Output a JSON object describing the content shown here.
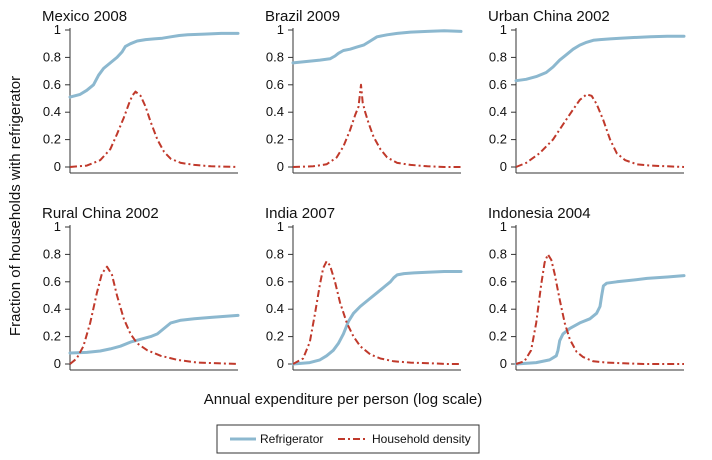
{
  "figure": {
    "ylabel": "Fraction of households with refrigerator",
    "xlabel": "Annual expenditure per person (log scale)",
    "legend": {
      "placement": "bottom-center",
      "entries": [
        {
          "name": "Refrigerator",
          "color": "#8cb8cf",
          "style": "solid"
        },
        {
          "name": "Household density",
          "color": "#c0392b",
          "style": "dash-dot"
        }
      ]
    }
  },
  "chart_data": [
    {
      "type": "line",
      "title": "Mexico 2008",
      "ylim": [
        0,
        1
      ],
      "yticks": [
        "0",
        "0.2",
        "0.4",
        "0.6",
        "0.8",
        "1"
      ],
      "xlim": [
        0,
        1
      ],
      "series": [
        {
          "name": "Refrigerator",
          "style": "solid",
          "x": [
            0,
            0.06,
            0.1,
            0.14,
            0.17,
            0.2,
            0.24,
            0.28,
            0.31,
            0.33,
            0.36,
            0.4,
            0.45,
            0.5,
            0.55,
            0.6,
            0.65,
            0.7,
            0.8,
            0.9,
            1.0
          ],
          "y": [
            0.51,
            0.53,
            0.56,
            0.6,
            0.67,
            0.72,
            0.76,
            0.8,
            0.84,
            0.88,
            0.9,
            0.92,
            0.93,
            0.935,
            0.94,
            0.95,
            0.96,
            0.965,
            0.97,
            0.975,
            0.975
          ]
        },
        {
          "name": "Household density",
          "style": "dash-dot",
          "x": [
            0,
            0.1,
            0.18,
            0.24,
            0.28,
            0.32,
            0.35,
            0.37,
            0.39,
            0.42,
            0.45,
            0.48,
            0.52,
            0.56,
            0.6,
            0.66,
            0.74,
            0.84,
            1.0
          ],
          "y": [
            0,
            0.01,
            0.05,
            0.13,
            0.24,
            0.36,
            0.46,
            0.52,
            0.55,
            0.52,
            0.44,
            0.33,
            0.2,
            0.11,
            0.06,
            0.03,
            0.015,
            0.005,
            0
          ]
        }
      ]
    },
    {
      "type": "line",
      "title": "Brazil 2009",
      "ylim": [
        0,
        1
      ],
      "yticks": [
        "0",
        "0.2",
        "0.4",
        "0.6",
        "0.8",
        "1"
      ],
      "xlim": [
        0,
        1
      ],
      "series": [
        {
          "name": "Refrigerator",
          "style": "solid",
          "x": [
            0,
            0.08,
            0.16,
            0.22,
            0.25,
            0.27,
            0.3,
            0.34,
            0.38,
            0.42,
            0.46,
            0.5,
            0.56,
            0.62,
            0.7,
            0.8,
            0.9,
            1.0
          ],
          "y": [
            0.76,
            0.77,
            0.78,
            0.79,
            0.81,
            0.83,
            0.85,
            0.86,
            0.875,
            0.89,
            0.92,
            0.95,
            0.965,
            0.975,
            0.985,
            0.99,
            0.995,
            0.99
          ]
        },
        {
          "name": "Household density",
          "style": "dash-dot",
          "x": [
            0,
            0.12,
            0.2,
            0.26,
            0.3,
            0.34,
            0.37,
            0.39,
            0.405,
            0.415,
            0.43,
            0.45,
            0.48,
            0.52,
            0.56,
            0.62,
            0.7,
            0.8,
            0.9,
            1.0
          ],
          "y": [
            0,
            0.005,
            0.02,
            0.07,
            0.15,
            0.27,
            0.38,
            0.44,
            0.6,
            0.47,
            0.4,
            0.32,
            0.22,
            0.13,
            0.07,
            0.03,
            0.015,
            0.005,
            0,
            0
          ]
        }
      ]
    },
    {
      "type": "line",
      "title": "Urban China 2002",
      "ylim": [
        0,
        1
      ],
      "yticks": [
        "0",
        "0.2",
        "0.4",
        "0.6",
        "0.8",
        "1"
      ],
      "xlim": [
        0,
        1
      ],
      "series": [
        {
          "name": "Refrigerator",
          "style": "solid",
          "x": [
            0,
            0.06,
            0.12,
            0.18,
            0.22,
            0.26,
            0.3,
            0.34,
            0.38,
            0.42,
            0.46,
            0.5,
            0.56,
            0.62,
            0.7,
            0.8,
            0.9,
            1.0
          ],
          "y": [
            0.63,
            0.64,
            0.66,
            0.69,
            0.73,
            0.78,
            0.82,
            0.86,
            0.89,
            0.91,
            0.925,
            0.93,
            0.935,
            0.94,
            0.945,
            0.95,
            0.955,
            0.955
          ]
        },
        {
          "name": "Household density",
          "style": "dash-dot",
          "x": [
            0,
            0.06,
            0.14,
            0.22,
            0.28,
            0.34,
            0.38,
            0.42,
            0.45,
            0.48,
            0.52,
            0.56,
            0.6,
            0.65,
            0.72,
            0.8,
            0.9,
            1.0
          ],
          "y": [
            0,
            0.03,
            0.1,
            0.2,
            0.31,
            0.42,
            0.49,
            0.53,
            0.52,
            0.46,
            0.34,
            0.2,
            0.1,
            0.05,
            0.02,
            0.01,
            0.005,
            0
          ]
        }
      ]
    },
    {
      "type": "line",
      "title": "Rural China 2002",
      "ylim": [
        0,
        1
      ],
      "yticks": [
        "0",
        "0.2",
        "0.4",
        "0.6",
        "0.8",
        "1"
      ],
      "xlim": [
        0,
        1
      ],
      "series": [
        {
          "name": "Refrigerator",
          "style": "solid",
          "x": [
            0,
            0.1,
            0.18,
            0.24,
            0.3,
            0.36,
            0.42,
            0.48,
            0.52,
            0.56,
            0.6,
            0.66,
            0.74,
            0.84,
            0.94,
            1.0
          ],
          "y": [
            0.08,
            0.085,
            0.095,
            0.11,
            0.13,
            0.16,
            0.18,
            0.2,
            0.22,
            0.26,
            0.3,
            0.32,
            0.33,
            0.34,
            0.35,
            0.355
          ]
        },
        {
          "name": "Household density",
          "style": "dash-dot",
          "x": [
            0,
            0.04,
            0.08,
            0.12,
            0.16,
            0.19,
            0.22,
            0.25,
            0.28,
            0.32,
            0.36,
            0.4,
            0.46,
            0.54,
            0.64,
            0.76,
            0.88,
            1.0
          ],
          "y": [
            0,
            0.04,
            0.13,
            0.3,
            0.52,
            0.66,
            0.71,
            0.65,
            0.5,
            0.33,
            0.22,
            0.15,
            0.1,
            0.06,
            0.03,
            0.01,
            0.005,
            0
          ]
        }
      ]
    },
    {
      "type": "line",
      "title": "India 2007",
      "ylim": [
        0,
        1
      ],
      "yticks": [
        "0",
        "0.2",
        "0.4",
        "0.6",
        "0.8",
        "1"
      ],
      "xlim": [
        0,
        1
      ],
      "series": [
        {
          "name": "Refrigerator",
          "style": "solid",
          "x": [
            0,
            0.1,
            0.16,
            0.2,
            0.24,
            0.27,
            0.3,
            0.33,
            0.36,
            0.4,
            0.45,
            0.5,
            0.55,
            0.58,
            0.6,
            0.62,
            0.66,
            0.72,
            0.8,
            0.9,
            1.0
          ],
          "y": [
            0,
            0.01,
            0.03,
            0.06,
            0.1,
            0.15,
            0.22,
            0.31,
            0.37,
            0.42,
            0.47,
            0.52,
            0.57,
            0.6,
            0.63,
            0.65,
            0.66,
            0.665,
            0.67,
            0.675,
            0.675
          ]
        },
        {
          "name": "Household density",
          "style": "dash-dot",
          "x": [
            0,
            0.06,
            0.1,
            0.13,
            0.16,
            0.18,
            0.2,
            0.22,
            0.25,
            0.28,
            0.32,
            0.36,
            0.4,
            0.46,
            0.52,
            0.6,
            0.7,
            0.82,
            0.92,
            1.0
          ],
          "y": [
            0,
            0.04,
            0.16,
            0.36,
            0.58,
            0.7,
            0.75,
            0.72,
            0.6,
            0.45,
            0.3,
            0.2,
            0.13,
            0.07,
            0.04,
            0.02,
            0.01,
            0.005,
            0,
            0
          ]
        }
      ]
    },
    {
      "type": "line",
      "title": "Indonesia 2004",
      "ylim": [
        0,
        1
      ],
      "yticks": [
        "0",
        "0.2",
        "0.4",
        "0.6",
        "0.8",
        "1"
      ],
      "xlim": [
        0,
        1
      ],
      "series": [
        {
          "name": "Refrigerator",
          "style": "solid",
          "x": [
            0,
            0.12,
            0.2,
            0.24,
            0.25,
            0.26,
            0.28,
            0.32,
            0.38,
            0.44,
            0.48,
            0.5,
            0.51,
            0.52,
            0.54,
            0.6,
            0.68,
            0.78,
            0.9,
            1.0
          ],
          "y": [
            0,
            0.01,
            0.03,
            0.06,
            0.1,
            0.17,
            0.22,
            0.26,
            0.3,
            0.33,
            0.37,
            0.42,
            0.5,
            0.57,
            0.59,
            0.6,
            0.61,
            0.625,
            0.635,
            0.645
          ]
        },
        {
          "name": "Household density",
          "style": "dash-dot",
          "x": [
            0,
            0.05,
            0.09,
            0.12,
            0.15,
            0.17,
            0.19,
            0.21,
            0.23,
            0.26,
            0.29,
            0.32,
            0.36,
            0.4,
            0.46,
            0.54,
            0.64,
            0.76,
            0.88,
            1.0
          ],
          "y": [
            0,
            0.02,
            0.1,
            0.3,
            0.58,
            0.74,
            0.8,
            0.76,
            0.66,
            0.47,
            0.3,
            0.18,
            0.09,
            0.05,
            0.02,
            0.01,
            0.005,
            0,
            0,
            0
          ]
        }
      ]
    }
  ]
}
